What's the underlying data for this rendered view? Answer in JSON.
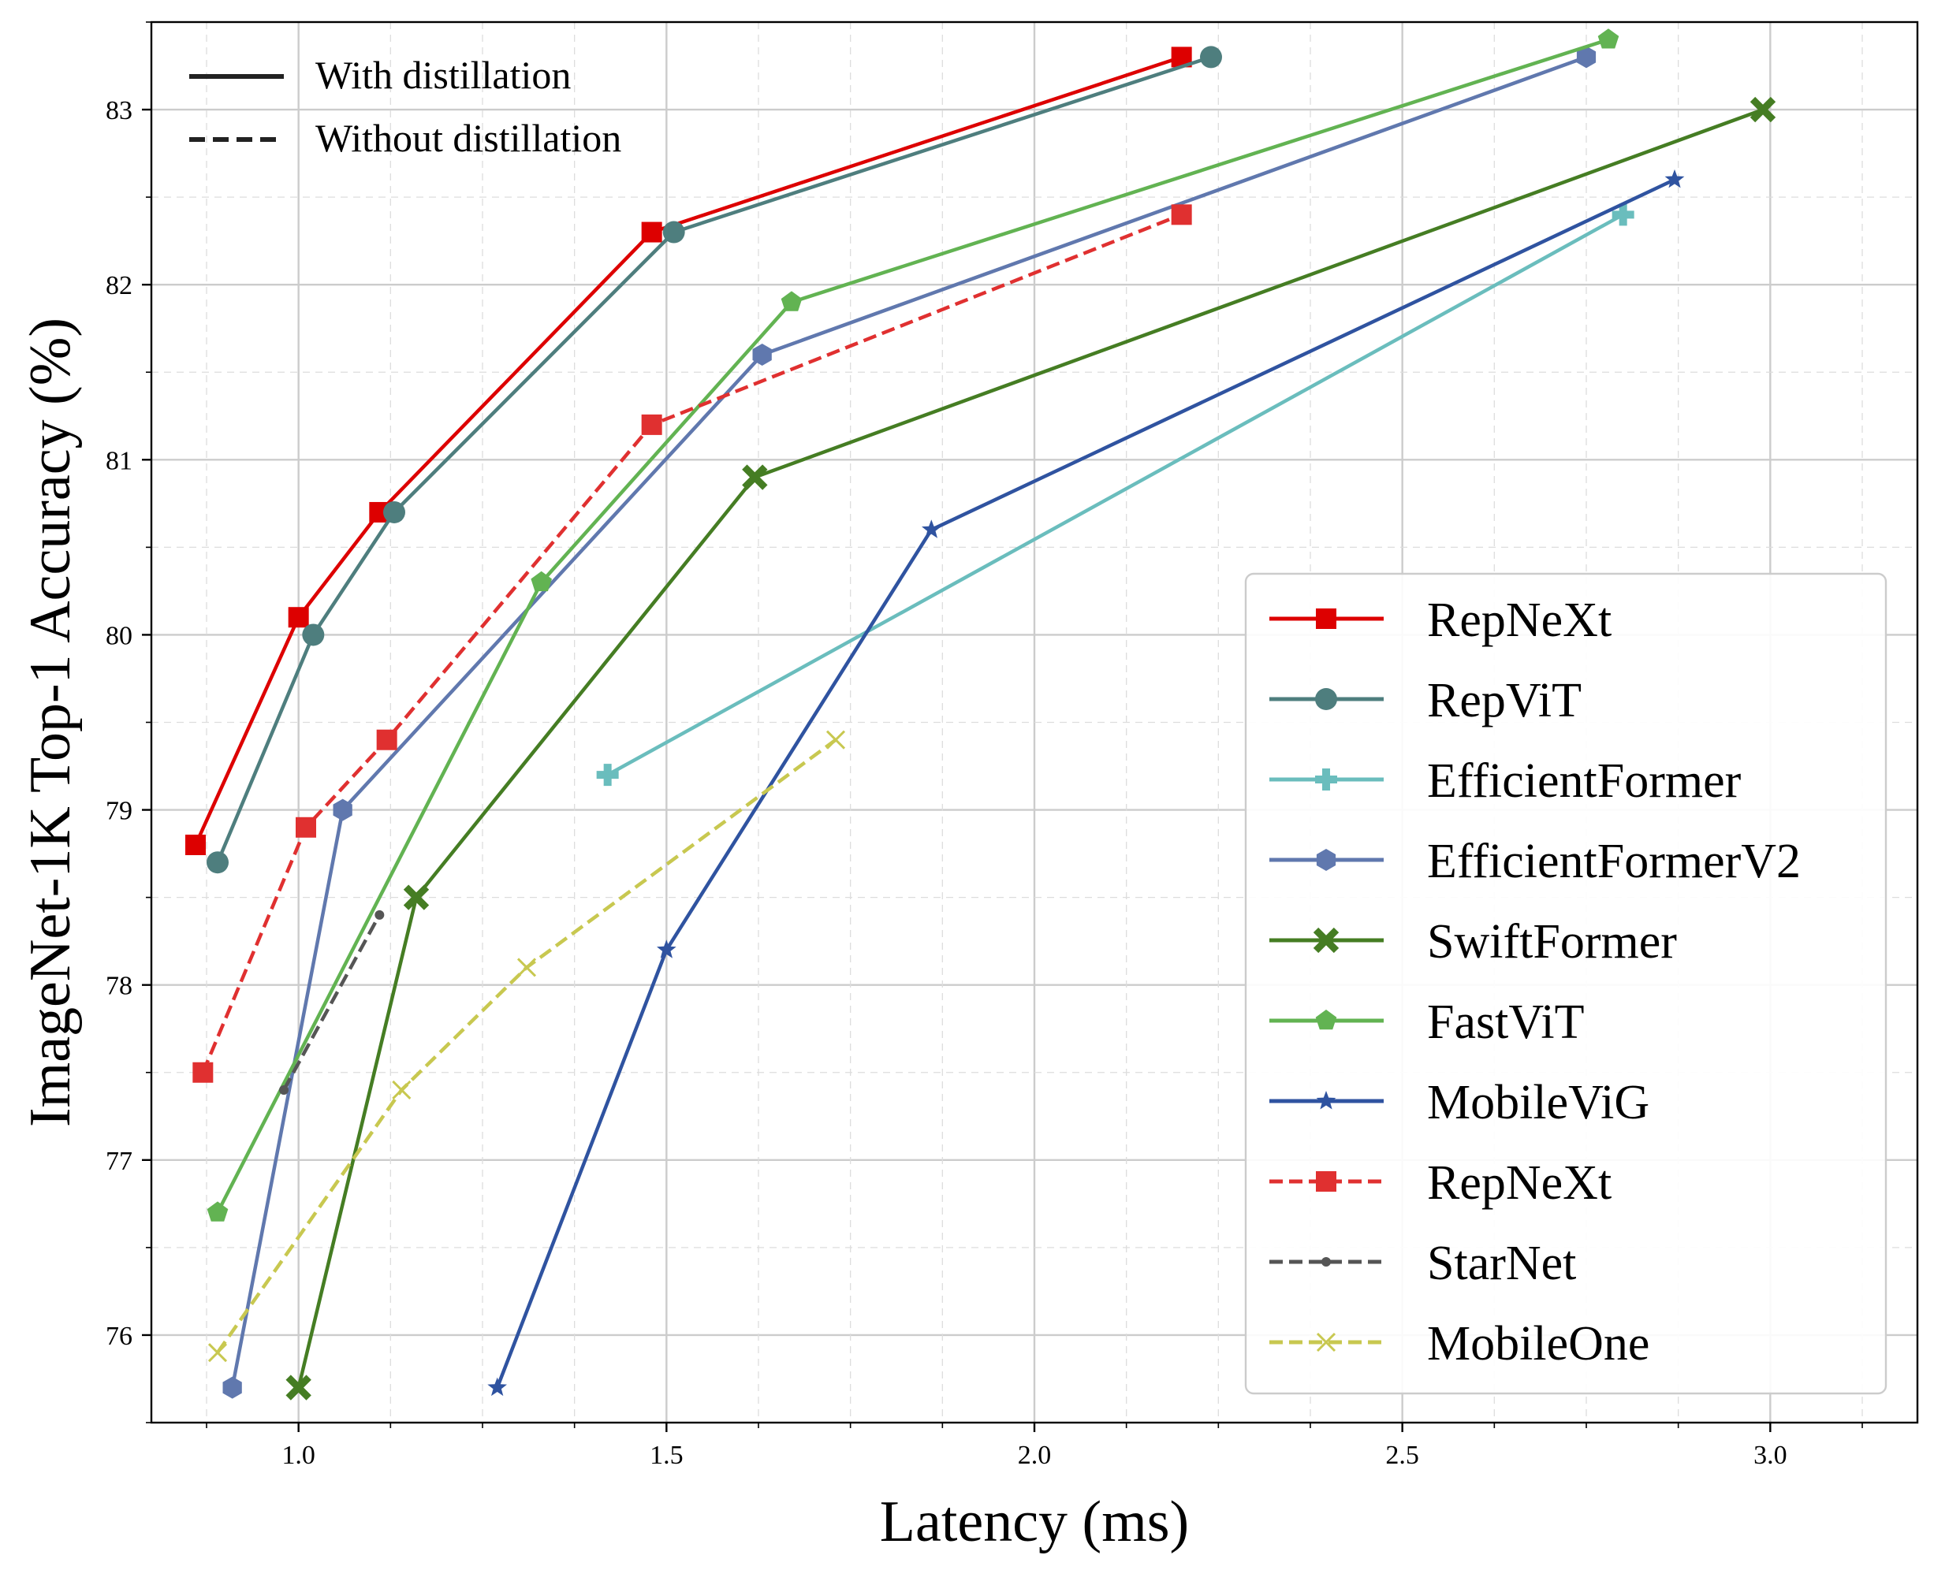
{
  "chart_data": {
    "type": "line",
    "xlabel": "Latency (ms)",
    "ylabel": "ImageNet-1K Top-1 Accuracy (%)",
    "xlim": [
      0.8,
      3.2
    ],
    "ylim": [
      75.5,
      83.5
    ],
    "xticks": [
      1.0,
      1.5,
      2.0,
      2.5,
      3.0
    ],
    "xtick_labels": [
      "1.0",
      "1.5",
      "2.0",
      "2.5",
      "3.0"
    ],
    "xminor": [
      0.875,
      1.125,
      1.25,
      1.375,
      1.625,
      1.75,
      1.875,
      2.125,
      2.25,
      2.375,
      2.625,
      2.75,
      2.875,
      3.125
    ],
    "yticks": [
      76,
      77,
      78,
      79,
      80,
      81,
      82,
      83
    ],
    "ytick_labels": [
      "76",
      "77",
      "78",
      "79",
      "80",
      "81",
      "82",
      "83"
    ],
    "yminor": [
      75.5,
      76.5,
      77.5,
      78.5,
      79.5,
      80.5,
      81.5,
      82.5,
      83.5
    ],
    "grid": true,
    "style_legend": {
      "position": "top-left",
      "entries": [
        {
          "label": "With distillation",
          "dash": "solid"
        },
        {
          "label": "Without distillation",
          "dash": "dashed"
        }
      ]
    },
    "legend_position": "lower-right",
    "series": [
      {
        "name": "RepNeXt",
        "color": "#dd0000",
        "marker": "square",
        "dash": "solid",
        "x": [
          0.86,
          1.0,
          1.11,
          1.48,
          2.2
        ],
        "y": [
          78.8,
          80.1,
          80.7,
          82.3,
          83.3
        ]
      },
      {
        "name": "RepViT",
        "color": "#4e7e7e",
        "marker": "circle",
        "dash": "solid",
        "x": [
          0.89,
          1.02,
          1.13,
          1.51,
          2.24
        ],
        "y": [
          78.7,
          80.0,
          80.7,
          82.3,
          83.3
        ]
      },
      {
        "name": "EfficientFormer",
        "color": "#6abdbd",
        "marker": "plus",
        "dash": "solid",
        "x": [
          1.42,
          2.8
        ],
        "y": [
          79.2,
          82.4
        ]
      },
      {
        "name": "EfficientFormerV2",
        "color": "#6078ae",
        "marker": "hexagon",
        "dash": "solid",
        "x": [
          0.91,
          1.06,
          1.63,
          2.75
        ],
        "y": [
          75.7,
          79.0,
          81.6,
          83.3
        ]
      },
      {
        "name": "SwiftFormer",
        "color": "#457d23",
        "marker": "xfilled",
        "dash": "solid",
        "x": [
          1.0,
          1.16,
          1.62,
          2.99
        ],
        "y": [
          75.7,
          78.5,
          80.9,
          83.0
        ]
      },
      {
        "name": "FastViT",
        "color": "#62b352",
        "marker": "pentagon",
        "dash": "solid",
        "x": [
          0.89,
          1.33,
          1.67,
          2.78
        ],
        "y": [
          76.7,
          80.3,
          81.9,
          83.4
        ]
      },
      {
        "name": "MobileViG",
        "color": "#2f53a0",
        "marker": "star",
        "dash": "solid",
        "x": [
          1.27,
          1.5,
          1.86,
          2.87
        ],
        "y": [
          75.7,
          78.2,
          80.6,
          82.6
        ]
      },
      {
        "name": "RepNeXt",
        "color": "#e03030",
        "marker": "square",
        "dash": "dashed",
        "x": [
          0.87,
          1.01,
          1.12,
          1.48,
          2.2
        ],
        "y": [
          77.5,
          78.9,
          79.4,
          81.2,
          82.4
        ]
      },
      {
        "name": "StarNet",
        "color": "#555555",
        "marker": "dot",
        "dash": "dashed",
        "x": [
          0.98,
          1.11
        ],
        "y": [
          77.4,
          78.4
        ]
      },
      {
        "name": "MobileOne",
        "color": "#c8c850",
        "marker": "x",
        "dash": "dashed",
        "x": [
          0.89,
          1.14,
          1.31,
          1.73
        ],
        "y": [
          75.9,
          77.4,
          78.1,
          79.4
        ]
      }
    ]
  }
}
